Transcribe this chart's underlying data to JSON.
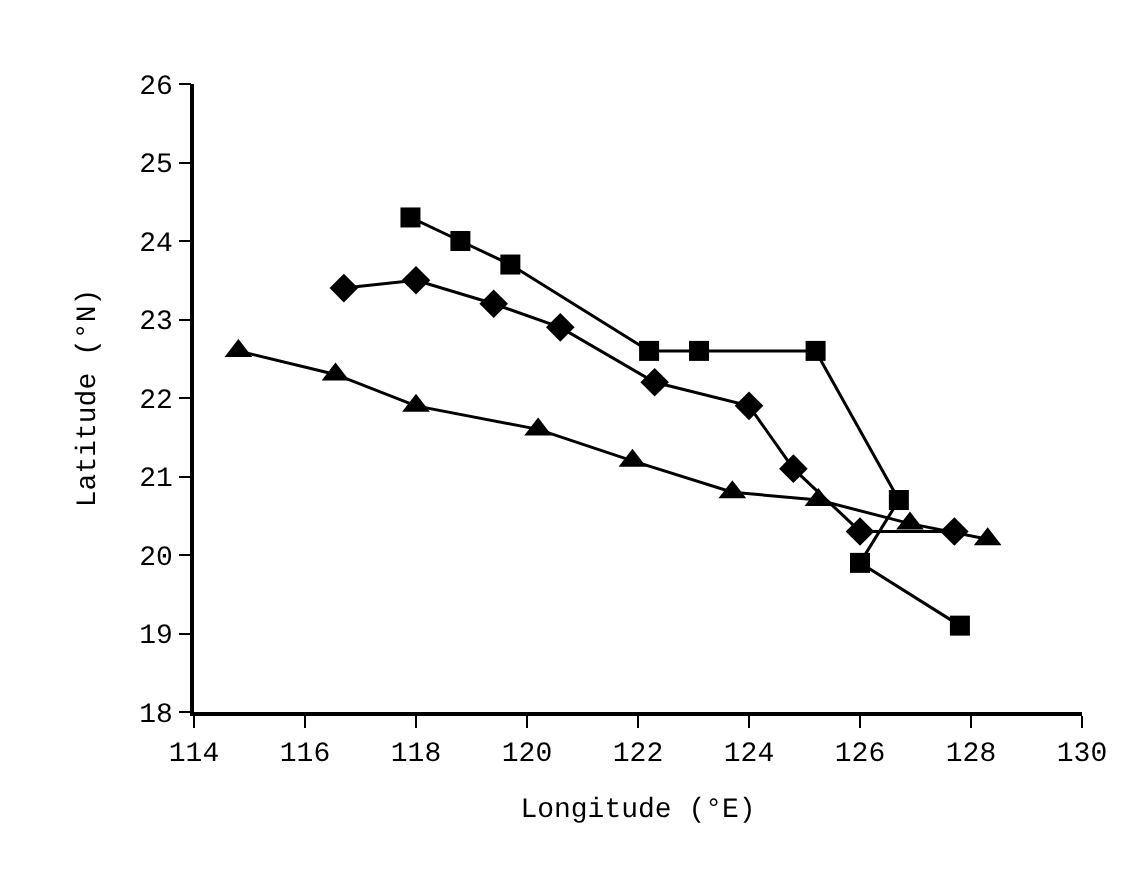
{
  "chart_data": {
    "type": "line",
    "xlabel": "Longitude (°E)",
    "ylabel": "Latitude (°N)",
    "xlim": [
      114,
      130
    ],
    "xticks": [
      114,
      116,
      118,
      120,
      122,
      124,
      126,
      128,
      130
    ],
    "ylim": [
      18,
      26
    ],
    "yticks": [
      18,
      19,
      20,
      21,
      22,
      23,
      24,
      25,
      26
    ],
    "grid": false,
    "line_style": "solid",
    "series": [
      {
        "color": "#000000",
        "marker": "square",
        "x": [
          117.9,
          118.8,
          119.7,
          122.2,
          123.1,
          125.2,
          126.7,
          126.0,
          127.8
        ],
        "values": [
          24.3,
          24.0,
          23.7,
          22.6,
          22.6,
          22.6,
          20.7,
          19.9,
          19.1
        ]
      },
      {
        "color": "#000000",
        "marker": "diamond",
        "x": [
          116.7,
          118.0,
          119.4,
          120.6,
          122.3,
          124.0,
          124.8,
          126.0,
          127.7
        ],
        "values": [
          23.4,
          23.5,
          23.2,
          22.9,
          22.2,
          21.9,
          21.1,
          20.3,
          20.3
        ]
      },
      {
        "color": "#000000",
        "marker": "triangle",
        "x": [
          114.8,
          116.55,
          118.0,
          120.2,
          121.9,
          123.7,
          125.25,
          126.9,
          128.3
        ],
        "values": [
          22.6,
          22.3,
          21.9,
          21.6,
          21.2,
          20.8,
          20.7,
          20.4,
          20.2
        ]
      }
    ]
  }
}
